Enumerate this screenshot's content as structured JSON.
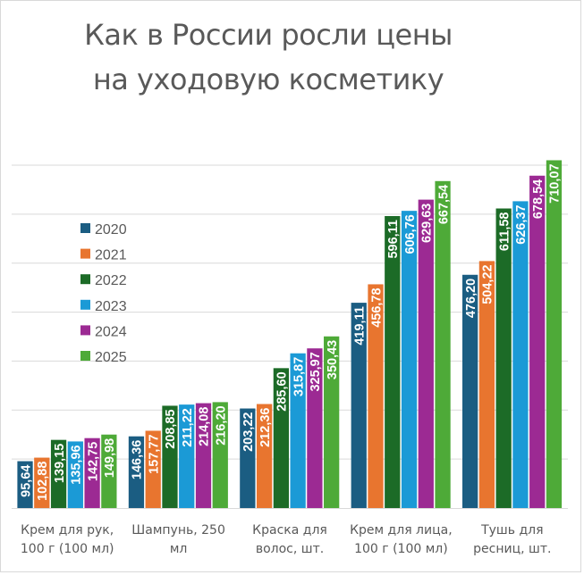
{
  "chart_data": {
    "type": "bar",
    "title": [
      "Как в России росли цены",
      "на уходовую косметику"
    ],
    "categories": [
      [
        "Крем для рук,",
        "100 г (100 мл)"
      ],
      [
        "Шампунь, 250",
        "мл"
      ],
      [
        "Краска для",
        "волос, шт."
      ],
      [
        "Крем для лица,",
        "100 г (100 мл)"
      ],
      [
        "Тушь для",
        "ресниц, шт."
      ]
    ],
    "series": [
      {
        "name": "2020",
        "color": "#1b5d82",
        "values": [
          95.64,
          146.36,
          203.22,
          419.11,
          476.2
        ],
        "labels": [
          "95,64",
          "146,36",
          "203,22",
          "419,11",
          "476,20"
        ]
      },
      {
        "name": "2021",
        "color": "#e8752f",
        "values": [
          102.88,
          157.77,
          212.36,
          456.78,
          504.22
        ],
        "labels": [
          "102,88",
          "157,77",
          "212,36",
          "456,78",
          "504,22"
        ]
      },
      {
        "name": "2022",
        "color": "#1c6b27",
        "values": [
          139.15,
          208.85,
          285.6,
          596.11,
          611.58
        ],
        "labels": [
          "139,15",
          "208,85",
          "285,60",
          "596,11",
          "611,58"
        ]
      },
      {
        "name": "2023",
        "color": "#1b9ad6",
        "values": [
          135.96,
          211.22,
          315.87,
          606.76,
          626.37
        ],
        "labels": [
          "135,96",
          "211,22",
          "315,87",
          "606,76",
          "626,37"
        ]
      },
      {
        "name": "2024",
        "color": "#9c2a93",
        "values": [
          142.75,
          214.08,
          325.97,
          629.63,
          678.54
        ],
        "labels": [
          "142,75",
          "214,08",
          "325,97",
          "629,63",
          "678,54"
        ]
      },
      {
        "name": "2025",
        "color": "#4eaa38",
        "values": [
          149.98,
          216.2,
          350.43,
          667.54,
          710.07
        ],
        "labels": [
          "149,98",
          "216,20",
          "350,43",
          "667,54",
          "710,07"
        ]
      }
    ],
    "ylim": [
      0,
      700
    ],
    "ygrid_step": 100,
    "grid": true,
    "legend": "top-left",
    "y_axis_labels_shown": false
  }
}
